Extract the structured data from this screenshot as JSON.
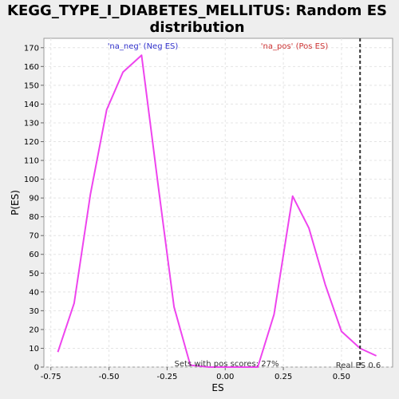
{
  "chart_data": {
    "type": "line",
    "title": [
      "KEGG_TYPE_I_DIABETES_MELLITUS: Random ES",
      "distribution"
    ],
    "xlabel": "ES",
    "ylabel": "P(ES)",
    "xlim": [
      -0.78,
      0.72
    ],
    "ylim": [
      0,
      175
    ],
    "xticks": [
      -0.75,
      -0.5,
      -0.25,
      0.0,
      0.25,
      0.5
    ],
    "xtick_labels": [
      "-0.75",
      "-0.50",
      "-0.25",
      "0.00",
      "0.25",
      "0.50"
    ],
    "yticks": [
      0,
      10,
      20,
      30,
      40,
      50,
      60,
      70,
      80,
      90,
      100,
      110,
      120,
      130,
      140,
      150,
      160,
      170
    ],
    "ytick_labels": [
      "0",
      "10",
      "20",
      "30",
      "40",
      "50",
      "60",
      "70",
      "80",
      "90",
      "100",
      "110",
      "120",
      "130",
      "140",
      "150",
      "160",
      "170"
    ],
    "grid": true,
    "series": [
      {
        "color": "#ee44ee",
        "x": [
          -0.72,
          -0.65,
          -0.58,
          -0.51,
          -0.44,
          -0.36,
          -0.29,
          -0.22,
          -0.15,
          -0.07,
          0.0,
          0.07,
          0.14,
          0.21,
          0.29,
          0.36,
          0.43,
          0.5,
          0.58,
          0.65
        ],
        "y": [
          8,
          34,
          92,
          137,
          157,
          166,
          98,
          32,
          1,
          0,
          0,
          0,
          0,
          28,
          91,
          74,
          44,
          19,
          10,
          6
        ]
      }
    ],
    "vline": {
      "x": 0.58,
      "style": "dashed",
      "color": "#333333"
    },
    "annotations": {
      "neg": {
        "text": "'na_neg' (Neg ES)",
        "color": "#3333cc"
      },
      "pos": {
        "text": "'na_pos' (Pos ES)",
        "color": "#cc3333"
      },
      "pos_scores": {
        "text": "Sets with pos scores: 27%",
        "color": "#333333"
      },
      "real_es": {
        "text": "Real ES 0.6",
        "color": "#333333"
      }
    }
  }
}
